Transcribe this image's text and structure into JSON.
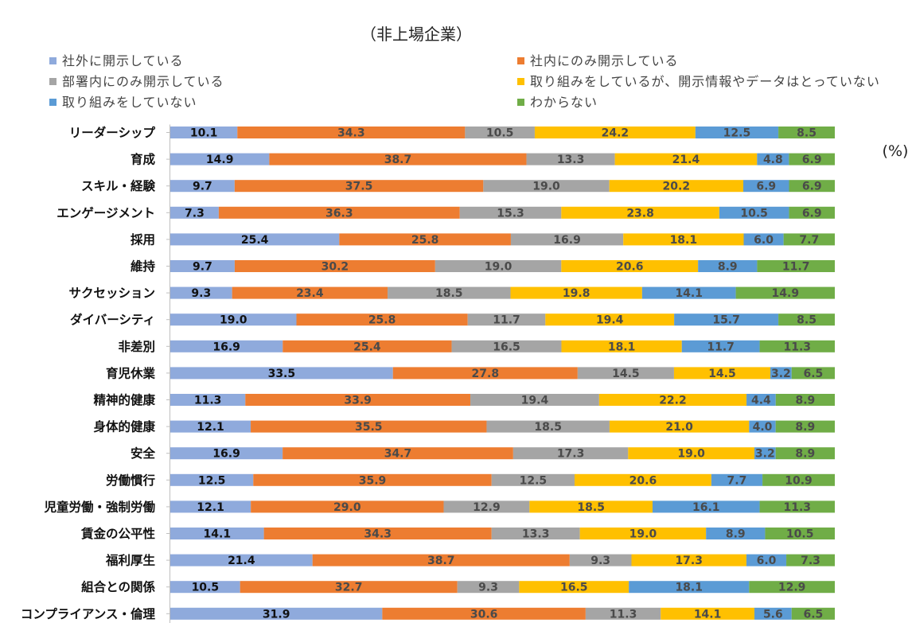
{
  "chart_data": {
    "type": "bar",
    "stacked": "100%",
    "orientation": "horizontal",
    "title": "（非上場企業）",
    "unit_label": "(%)",
    "categories": [
      "リーダーシップ",
      "育成",
      "スキル・経験",
      "エンゲージメント",
      "採用",
      "維持",
      "サクセッション",
      "ダイバーシティ",
      "非差別",
      "育児休業",
      "精神的健康",
      "身体的健康",
      "安全",
      "労働慣行",
      "児童労働・強制労働",
      "賃金の公平性",
      "福利厚生",
      "組合との関係",
      "コンプライアンス・倫理"
    ],
    "series": [
      {
        "name": "社外に開示している",
        "color": "#8FAADC",
        "label_color": "#111111",
        "values": [
          10.1,
          14.9,
          9.7,
          7.3,
          25.4,
          9.7,
          9.3,
          19.0,
          16.9,
          33.5,
          11.3,
          12.1,
          16.9,
          12.5,
          12.1,
          14.1,
          21.4,
          10.5,
          31.9
        ]
      },
      {
        "name": "社内にのみ開示している",
        "color": "#ED7D31",
        "label_color": "#4a4a4a",
        "values": [
          34.3,
          38.7,
          37.5,
          36.3,
          25.8,
          30.2,
          23.4,
          25.8,
          25.4,
          27.8,
          33.9,
          35.5,
          34.7,
          35.9,
          29.0,
          34.3,
          38.7,
          32.7,
          30.6
        ]
      },
      {
        "name": "部署内にのみ開示している",
        "color": "#A5A5A5",
        "label_color": "#4a4a4a",
        "values": [
          10.5,
          13.3,
          19.0,
          15.3,
          16.9,
          19.0,
          18.5,
          11.7,
          16.5,
          14.5,
          19.4,
          18.5,
          17.3,
          12.5,
          12.9,
          13.3,
          9.3,
          9.3,
          11.3
        ]
      },
      {
        "name": "取り組みをしているが、開示情報やデータはとっていない",
        "color": "#FFC000",
        "label_color": "#4a4a4a",
        "values": [
          24.2,
          21.4,
          20.2,
          23.8,
          18.1,
          20.6,
          19.8,
          19.4,
          18.1,
          14.5,
          22.2,
          21.0,
          19.0,
          20.6,
          18.5,
          19.0,
          17.3,
          16.5,
          14.1
        ]
      },
      {
        "name": "取り組みをしていない",
        "color": "#5B9BD5",
        "label_color": "#4a4a4a",
        "values": [
          12.5,
          4.8,
          6.9,
          10.5,
          6.0,
          8.9,
          14.1,
          15.7,
          11.7,
          3.2,
          4.4,
          4.0,
          3.2,
          7.7,
          16.1,
          8.9,
          6.0,
          18.1,
          5.6
        ]
      },
      {
        "name": "わからない",
        "color": "#70AD47",
        "label_color": "#4a4a4a",
        "values": [
          8.5,
          6.9,
          6.9,
          6.9,
          7.7,
          11.7,
          14.9,
          8.5,
          11.3,
          6.5,
          8.9,
          8.9,
          8.9,
          10.9,
          11.3,
          10.5,
          7.3,
          12.9,
          6.5
        ]
      }
    ],
    "xlim": [
      0,
      100
    ],
    "legend_position": "top",
    "grid": false
  }
}
